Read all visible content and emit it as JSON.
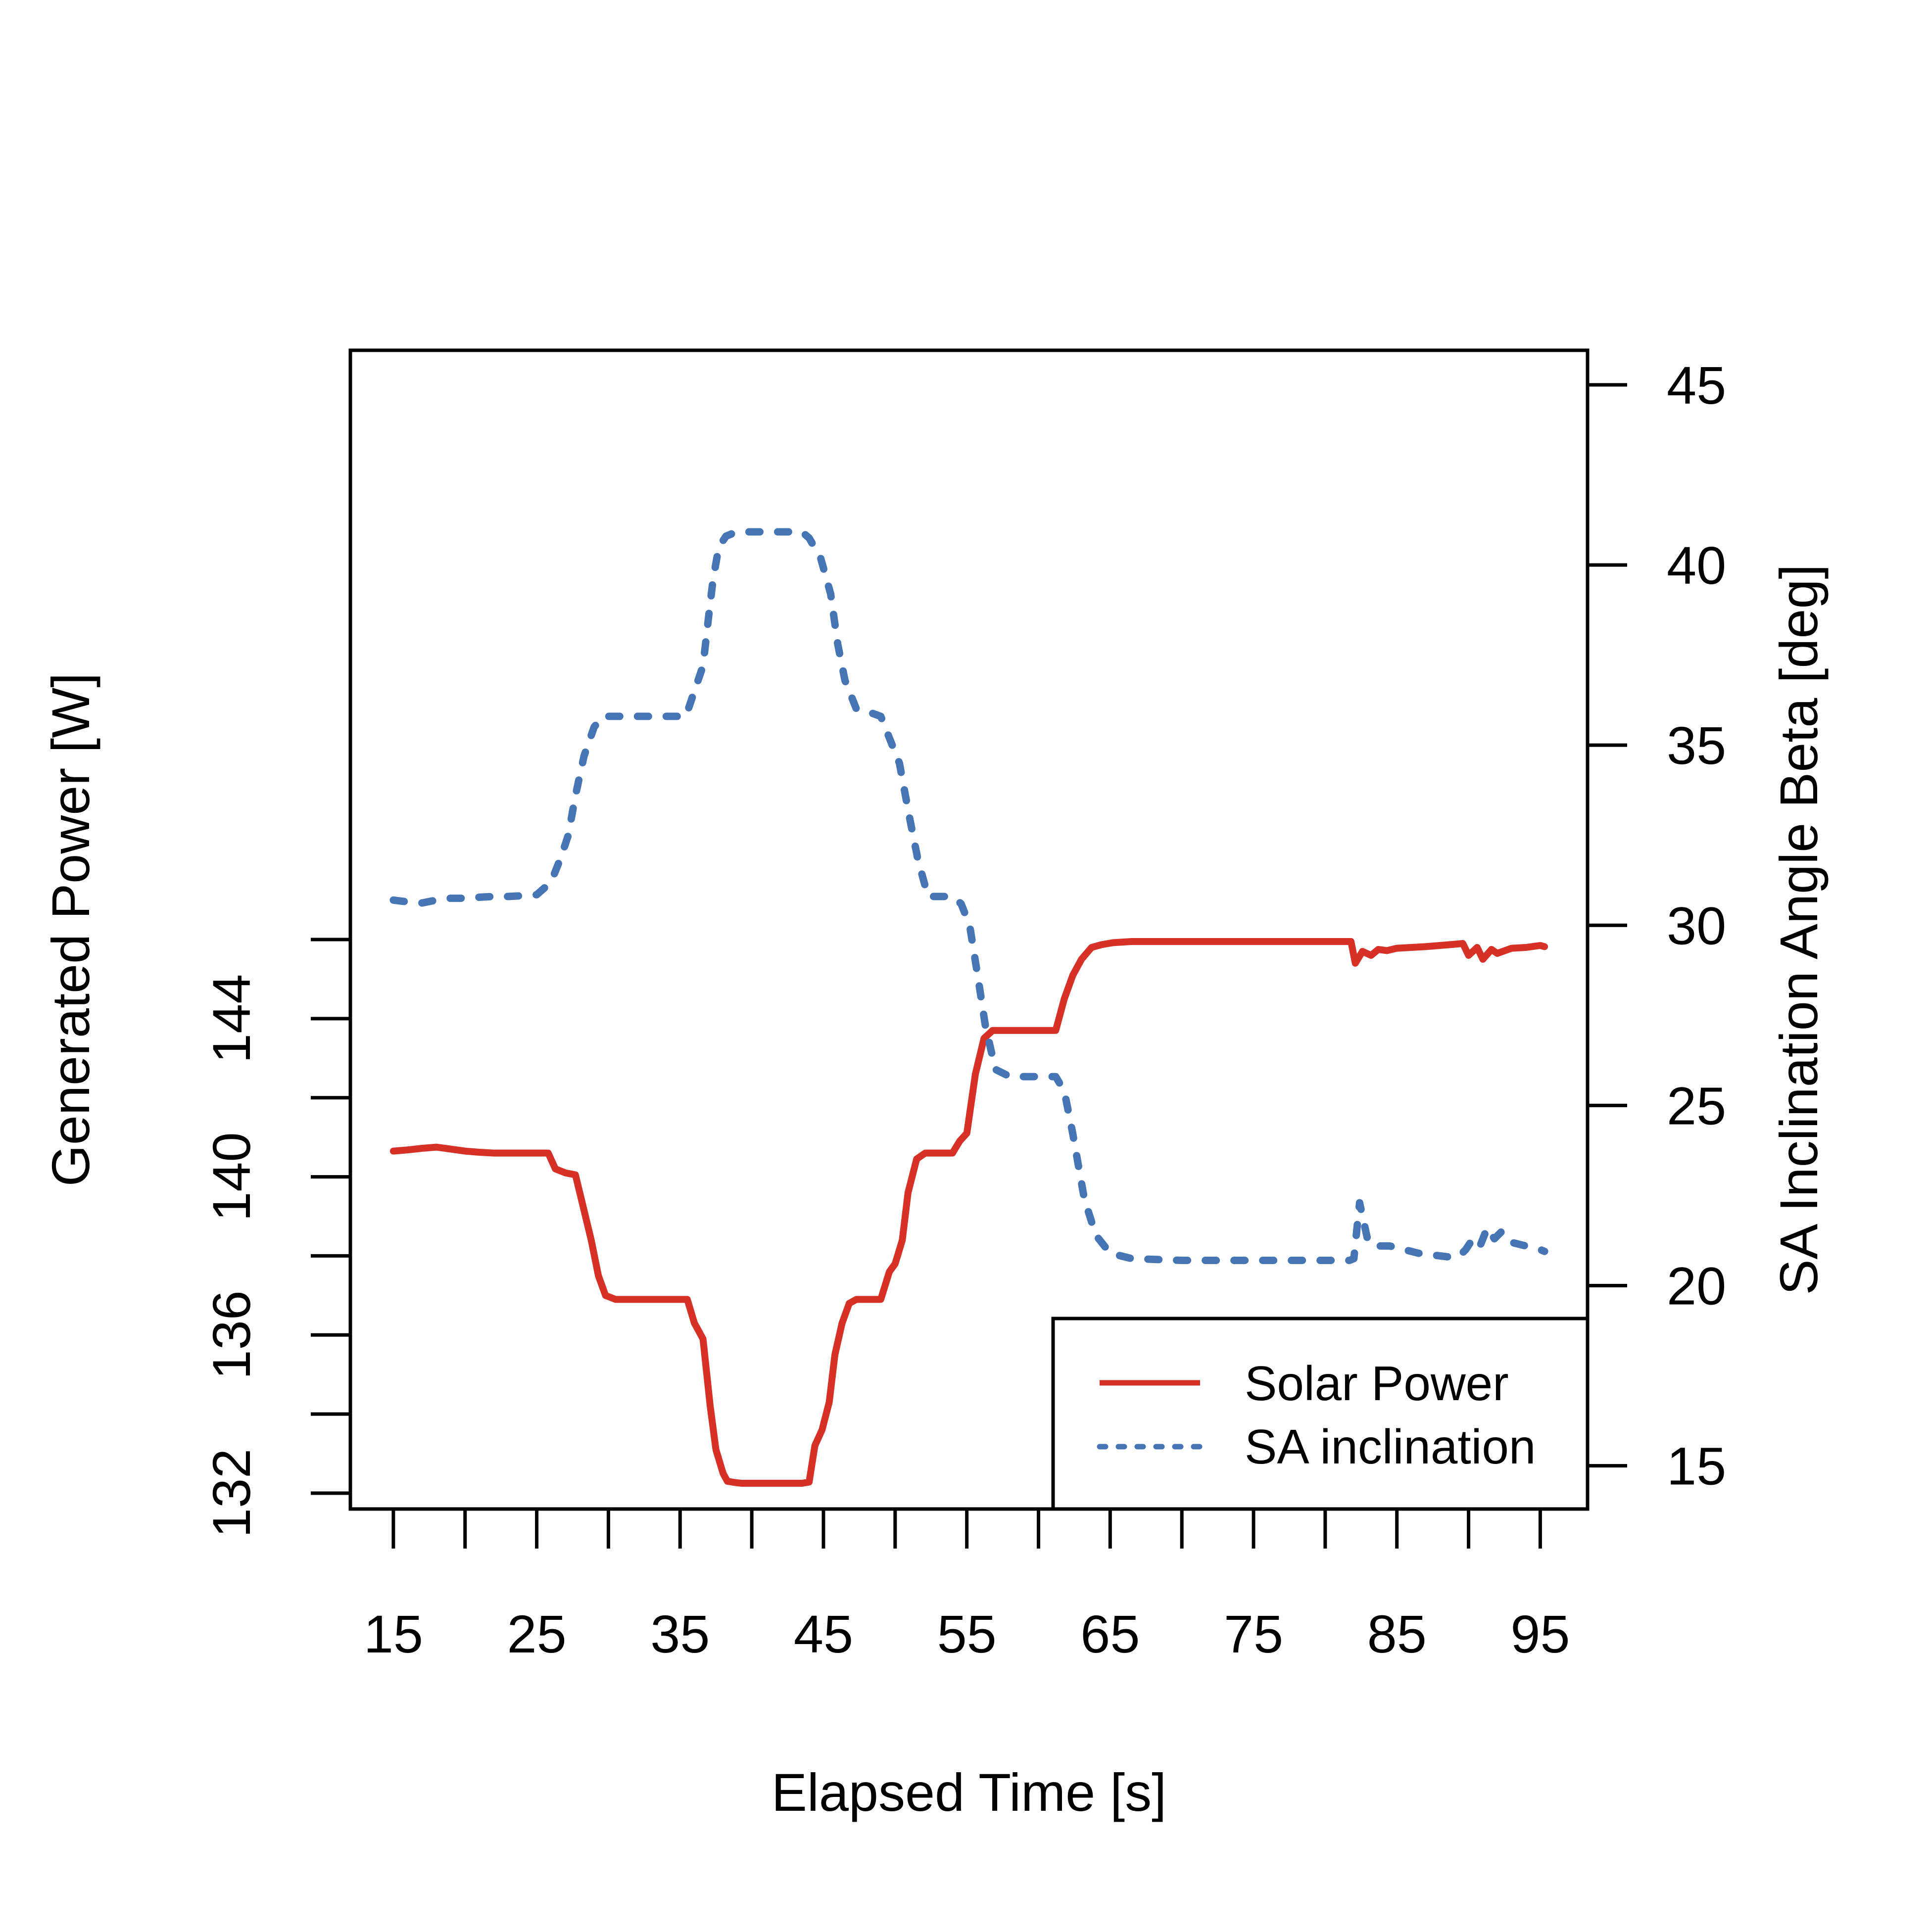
{
  "chart_data": {
    "type": "line",
    "xlabel": "Elapsed Time [s]",
    "ylabel_left": "Generated Power [W]",
    "ylabel_right": "SA Inclination Angle Beta [deg]",
    "xlim": [
      12,
      98.3
    ],
    "ylim_left": [
      131.6,
      160.9
    ],
    "ylim_right": [
      13.8,
      45.96
    ],
    "x_ticks": [
      15,
      20,
      25,
      30,
      35,
      40,
      45,
      50,
      55,
      60,
      65,
      70,
      75,
      80,
      85,
      90,
      95
    ],
    "x_tick_labels": [
      {
        "value": 15,
        "label": "15"
      },
      {
        "value": 25,
        "label": "25"
      },
      {
        "value": 35,
        "label": "35"
      },
      {
        "value": 45,
        "label": "45"
      },
      {
        "value": 55,
        "label": "55"
      },
      {
        "value": 65,
        "label": "65"
      },
      {
        "value": 75,
        "label": "75"
      },
      {
        "value": 85,
        "label": "85"
      },
      {
        "value": 95,
        "label": "95"
      }
    ],
    "y_left_ticks": [
      132,
      134,
      136,
      138,
      140,
      142,
      144,
      146
    ],
    "y_left_tick_labels": [
      {
        "value": 132,
        "label": "132"
      },
      {
        "value": 136,
        "label": "136"
      },
      {
        "value": 140,
        "label": "140"
      },
      {
        "value": 144,
        "label": "144"
      }
    ],
    "y_right_ticks": [
      15,
      20,
      25,
      30,
      35,
      40,
      45
    ],
    "y_right_tick_labels": [
      {
        "value": 15,
        "label": "15"
      },
      {
        "value": 20,
        "label": "20"
      },
      {
        "value": 25,
        "label": "25"
      },
      {
        "value": 30,
        "label": "30"
      },
      {
        "value": 35,
        "label": "35"
      },
      {
        "value": 40,
        "label": "40"
      },
      {
        "value": 45,
        "label": "45"
      }
    ],
    "legend_position": "bottom-right",
    "series": [
      {
        "name": "Solar Power",
        "axis": "left",
        "color": "#d73027",
        "style": "solid",
        "x": [
          15,
          16,
          17,
          18,
          19,
          20,
          21,
          22,
          23,
          24,
          25,
          25.8,
          26.3,
          27,
          27.7,
          28.2,
          28.8,
          29.3,
          29.8,
          30.5,
          32,
          34,
          35.5,
          36,
          36.6,
          37.1,
          37.5,
          38,
          38.3,
          38.8,
          39.3,
          40,
          42,
          43.5,
          44,
          44.4,
          44.9,
          45.4,
          45.8,
          46.3,
          46.8,
          47.3,
          47.8,
          49,
          49.6,
          50,
          50.5,
          50.9,
          51.5,
          52.1,
          52.8,
          54,
          54.5,
          55,
          55.6,
          56.2,
          56.8,
          57.3,
          58,
          60,
          61.2,
          61.8,
          62.4,
          63,
          63.7,
          64.4,
          65.2,
          66.5,
          70,
          75,
          80,
          81.8,
          82.1,
          82.6,
          83.2,
          83.7,
          84.3,
          85,
          86,
          87,
          88,
          89,
          89.6,
          90,
          90.6,
          91,
          91.6,
          92,
          93,
          94,
          95,
          95.3
        ],
        "y": [
          140.65,
          140.68,
          140.72,
          140.75,
          140.7,
          140.65,
          140.62,
          140.6,
          140.6,
          140.6,
          140.6,
          140.6,
          140.2,
          140.1,
          140.05,
          139.3,
          138.4,
          137.5,
          137.0,
          136.9,
          136.9,
          136.9,
          136.9,
          136.3,
          135.9,
          134.2,
          133.1,
          132.5,
          132.3,
          132.27,
          132.25,
          132.25,
          132.25,
          132.25,
          132.28,
          133.2,
          133.6,
          134.3,
          135.5,
          136.3,
          136.8,
          136.9,
          136.9,
          136.9,
          137.6,
          137.8,
          138.4,
          139.6,
          140.45,
          140.6,
          140.6,
          140.6,
          140.9,
          141.1,
          142.6,
          143.5,
          143.7,
          143.7,
          143.7,
          143.7,
          143.7,
          144.5,
          145.1,
          145.5,
          145.8,
          145.87,
          145.92,
          145.95,
          145.95,
          145.95,
          145.95,
          145.95,
          145.4,
          145.7,
          145.6,
          145.75,
          145.72,
          145.78,
          145.8,
          145.82,
          145.85,
          145.88,
          145.9,
          145.6,
          145.8,
          145.5,
          145.75,
          145.65,
          145.78,
          145.8,
          145.85,
          145.82
        ]
      },
      {
        "name": "SA inclination",
        "axis": "right",
        "color": "#4575b4",
        "style": "dotted",
        "x": [
          15,
          16,
          17,
          18,
          19,
          20,
          21,
          22,
          23,
          24,
          25,
          26,
          26.7,
          27.2,
          27.7,
          28.3,
          29,
          29.6,
          30.3,
          32,
          34,
          35.4,
          36,
          36.6,
          37,
          37.3,
          37.7,
          38.2,
          38.8,
          39.5,
          40,
          42,
          43.5,
          44,
          44.8,
          45.5,
          46,
          46.5,
          47.3,
          48.3,
          49,
          49.6,
          50.3,
          51,
          51.6,
          52.3,
          53,
          54,
          54.6,
          55.2,
          55.8,
          56.3,
          57,
          58,
          59.5,
          60.5,
          61.2,
          61.8,
          62.4,
          63.2,
          64,
          65,
          66.5,
          70,
          75,
          80,
          81.7,
          82,
          82.4,
          83,
          83.7,
          84.5,
          85.5,
          86.5,
          87.5,
          88.5,
          89.3,
          89.8,
          90.3,
          90.8,
          91.3,
          91.8,
          92.3,
          93,
          94,
          95,
          95.3
        ],
        "y": [
          30.7,
          30.65,
          30.62,
          30.7,
          30.75,
          30.75,
          30.78,
          30.8,
          30.8,
          30.82,
          30.85,
          31.2,
          31.9,
          32.5,
          33.6,
          34.7,
          35.5,
          35.8,
          35.8,
          35.8,
          35.8,
          35.8,
          36.5,
          37.2,
          38.6,
          39.6,
          40.5,
          40.8,
          40.9,
          40.92,
          40.92,
          40.92,
          40.92,
          40.75,
          40.2,
          39.2,
          37.8,
          36.8,
          36,
          35.9,
          35.8,
          35.2,
          34.5,
          33,
          31.8,
          30.8,
          30.8,
          30.8,
          30.6,
          30,
          28.5,
          27.2,
          26,
          25.8,
          25.8,
          25.8,
          25.8,
          25.4,
          24.2,
          22.4,
          21.4,
          20.9,
          20.75,
          20.7,
          20.7,
          20.7,
          20.7,
          20.75,
          22.3,
          21.2,
          21.1,
          21.1,
          21.0,
          20.9,
          20.85,
          20.8,
          20.8,
          21.0,
          21.3,
          21.1,
          21.6,
          21.3,
          21.5,
          21.2,
          21.1,
          21.0,
          20.95
        ]
      }
    ]
  }
}
